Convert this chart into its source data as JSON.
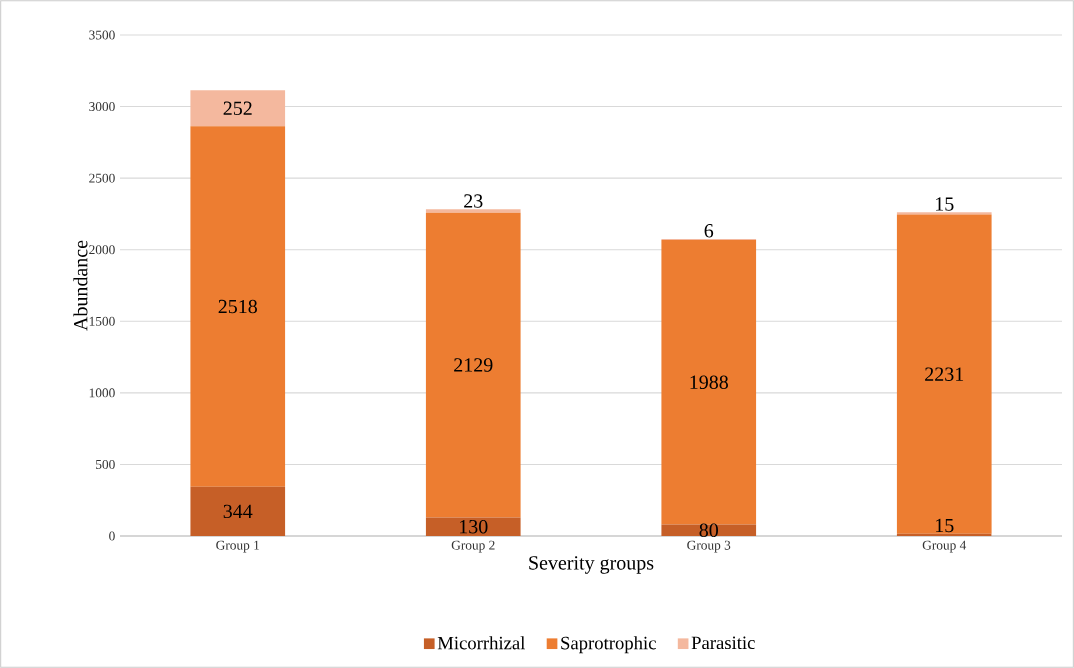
{
  "chart_data": {
    "type": "bar",
    "stacked": true,
    "xlabel": "Severity groups",
    "ylabel": "Abundance",
    "categories": [
      "Group 1",
      "Group 2",
      "Group 3",
      "Group 4"
    ],
    "series": [
      {
        "name": "Micorrhizal",
        "color": "#c65f27",
        "values": [
          344,
          130,
          80,
          15
        ]
      },
      {
        "name": "Saprotrophic",
        "color": "#ed7d31",
        "values": [
          2518,
          2129,
          1988,
          2231
        ]
      },
      {
        "name": "Parasitic",
        "color": "#f4b89e",
        "values": [
          252,
          23,
          6,
          15
        ]
      }
    ],
    "ylim": [
      0,
      3500
    ],
    "yticks": [
      0,
      500,
      1000,
      1500,
      2000,
      2500,
      3000,
      3500
    ],
    "grid": "y",
    "legend": "bottom",
    "data_labels": true
  }
}
